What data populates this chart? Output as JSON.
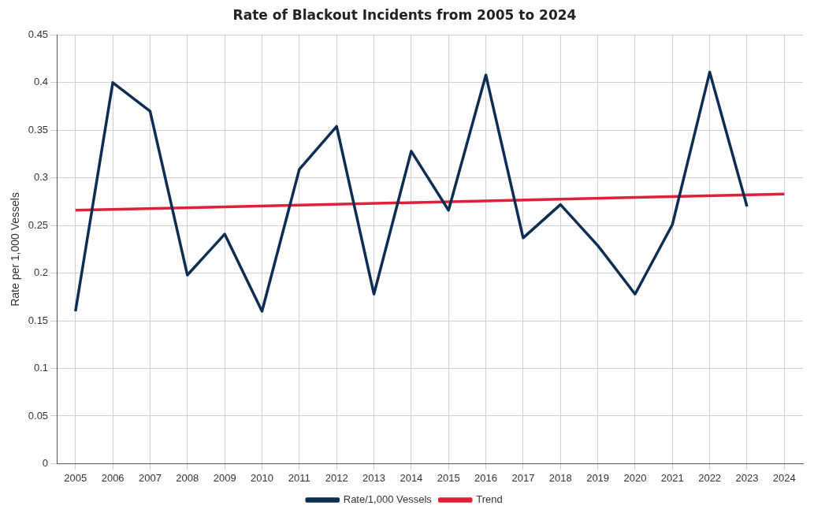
{
  "chart_data": {
    "type": "line",
    "title": "Rate of Blackout Incidents from 2005 to 2024",
    "ylabel": "Rate per 1,000 Vessels",
    "categories": [
      "2005",
      "2006",
      "2007",
      "2008",
      "2009",
      "2010",
      "2011",
      "2012",
      "2013",
      "2014",
      "2015",
      "2016",
      "2017",
      "2018",
      "2019",
      "2020",
      "2021",
      "2022",
      "2023",
      "2024"
    ],
    "series": [
      {
        "name": "Rate/1,000 Vessels",
        "color": "#0e2d52",
        "values": [
          0.16,
          0.4,
          0.37,
          0.198,
          0.241,
          0.16,
          0.309,
          0.354,
          0.178,
          0.328,
          0.266,
          0.408,
          0.237,
          0.272,
          0.229,
          0.178,
          0.251,
          0.411,
          0.27,
          null
        ]
      },
      {
        "name": "Trend",
        "color": "#e0203a",
        "values": [
          0.266,
          null,
          null,
          null,
          null,
          null,
          null,
          null,
          null,
          null,
          null,
          null,
          null,
          null,
          null,
          null,
          null,
          null,
          null,
          0.283
        ]
      }
    ],
    "ylim": [
      0,
      0.45
    ],
    "yticks": [
      0,
      0.05,
      0.1,
      0.15,
      0.2,
      0.25,
      0.3,
      0.35,
      0.4,
      0.45
    ],
    "grid": true,
    "legend": "bottom",
    "marker": "none",
    "line_style": "solid"
  }
}
